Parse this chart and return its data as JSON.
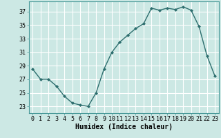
{
  "x": [
    0,
    1,
    2,
    3,
    4,
    5,
    6,
    7,
    8,
    9,
    10,
    11,
    12,
    13,
    14,
    15,
    16,
    17,
    18,
    19,
    20,
    21,
    22,
    23
  ],
  "y": [
    28.5,
    27.0,
    27.0,
    26.0,
    24.5,
    23.5,
    23.2,
    23.0,
    25.0,
    28.5,
    31.0,
    32.5,
    33.5,
    34.5,
    35.2,
    37.5,
    37.2,
    37.5,
    37.3,
    37.7,
    37.2,
    34.8,
    30.5,
    27.5
  ],
  "line_color": "#2d6e6e",
  "marker": "D",
  "markersize": 2.0,
  "linewidth": 1.0,
  "background_color": "#cce8e4",
  "grid_color": "#ffffff",
  "xlabel": "Humidex (Indice chaleur)",
  "xlabel_fontsize": 7,
  "xlim": [
    -0.5,
    23.5
  ],
  "ylim": [
    22,
    38.5
  ],
  "yticks": [
    23,
    25,
    27,
    29,
    31,
    33,
    35,
    37
  ],
  "xticks": [
    0,
    1,
    2,
    3,
    4,
    5,
    6,
    7,
    8,
    9,
    10,
    11,
    12,
    13,
    14,
    15,
    16,
    17,
    18,
    19,
    20,
    21,
    22,
    23
  ],
  "tick_fontsize": 6.0
}
